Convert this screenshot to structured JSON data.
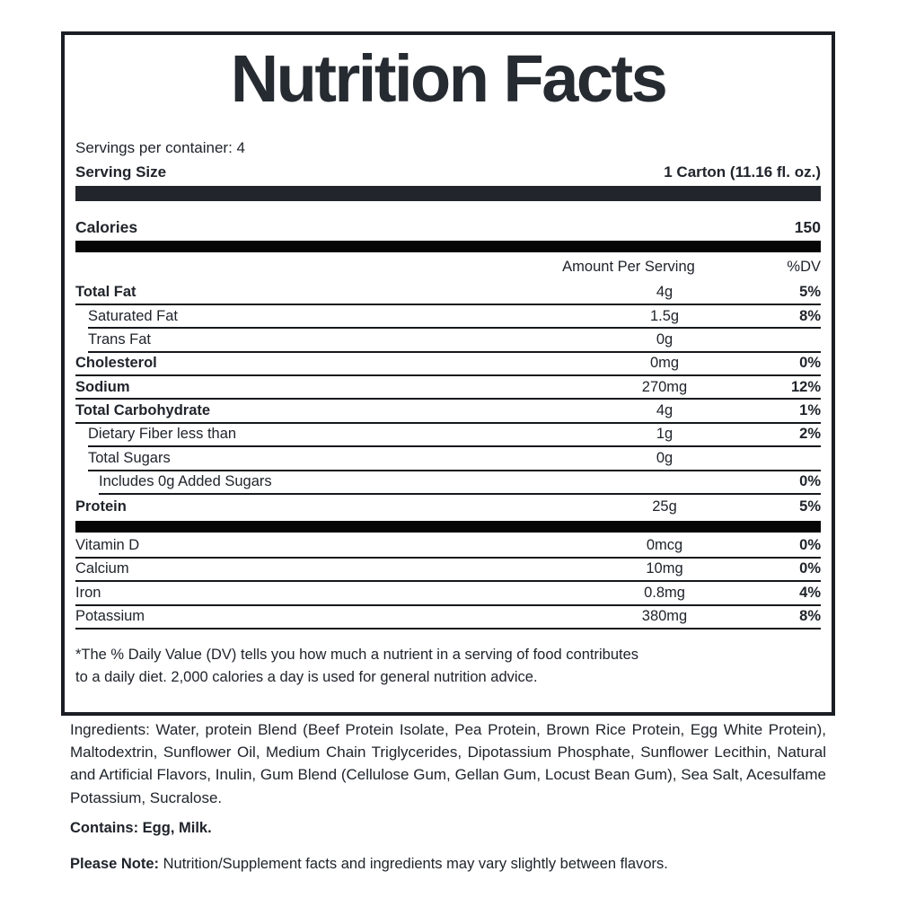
{
  "title": "Nutrition Facts",
  "servings_per_container": "Servings per container: 4",
  "serving_size": {
    "label": "Serving Size",
    "value": "1 Carton (11.16 fl. oz.)"
  },
  "calories": {
    "label": "Calories",
    "value": "150"
  },
  "column_headers": {
    "amount": "Amount Per Serving",
    "dv": "%DV"
  },
  "nutrients": [
    {
      "label": "Total Fat",
      "amount": "4g",
      "dv": "5%"
    },
    {
      "label": "Saturated Fat",
      "amount": "1.5g",
      "dv": "8%"
    },
    {
      "label": "Trans Fat",
      "amount": "0g",
      "dv": ""
    },
    {
      "label": "Cholesterol",
      "amount": "0mg",
      "dv": "0%"
    },
    {
      "label": "Sodium",
      "amount": "270mg",
      "dv": "12%"
    },
    {
      "label": "Total Carbohydrate",
      "amount": "4g",
      "dv": "1%"
    },
    {
      "label": "Dietary Fiber less than",
      "amount": "1g",
      "dv": "2%"
    },
    {
      "label": "Total Sugars",
      "amount": "0g",
      "dv": ""
    },
    {
      "label": "Includes 0g Added Sugars",
      "amount": "",
      "dv": "0%"
    },
    {
      "label": "Protein",
      "amount": "25g",
      "dv": "5%"
    }
  ],
  "micronutrients": [
    {
      "label": "Vitamin D",
      "amount": "0mcg",
      "dv": "0%"
    },
    {
      "label": "Calcium",
      "amount": "10mg",
      "dv": "0%"
    },
    {
      "label": "Iron",
      "amount": "0.8mg",
      "dv": "4%"
    },
    {
      "label": "Potassium",
      "amount": "380mg",
      "dv": "8%"
    }
  ],
  "footnote": "*The % Daily Value (DV) tells you how much a nutrient in a serving of food contributes to a daily diet. 2,000 calories a day is used for general nutrition advice.",
  "ingredients": "Ingredients: Water, protein Blend (Beef Protein Isolate, Pea Protein, Brown Rice Protein, Egg White Protein), Maltodextrin, Sunflower Oil, Medium Chain Triglycerides, Dipotassium Phosphate, Sunflower Lecithin, Natural and Artificial Flavors, Inulin, Gum Blend (Cellulose Gum, Gellan Gum, Locust Bean Gum), Sea Salt, Acesulfame Potassium, Sucralose.",
  "contains": "Contains: Egg, Milk.",
  "please_note": {
    "label": "Please Note:",
    "text": " Nutrition/Supplement facts and ingredients may vary slightly between flavors."
  },
  "colors": {
    "text": "#20242b",
    "title": "#262a31",
    "border": "#1a1e24",
    "bar_charcoal": "#22262c",
    "bar_black": "#060606",
    "background": "#ffffff"
  }
}
